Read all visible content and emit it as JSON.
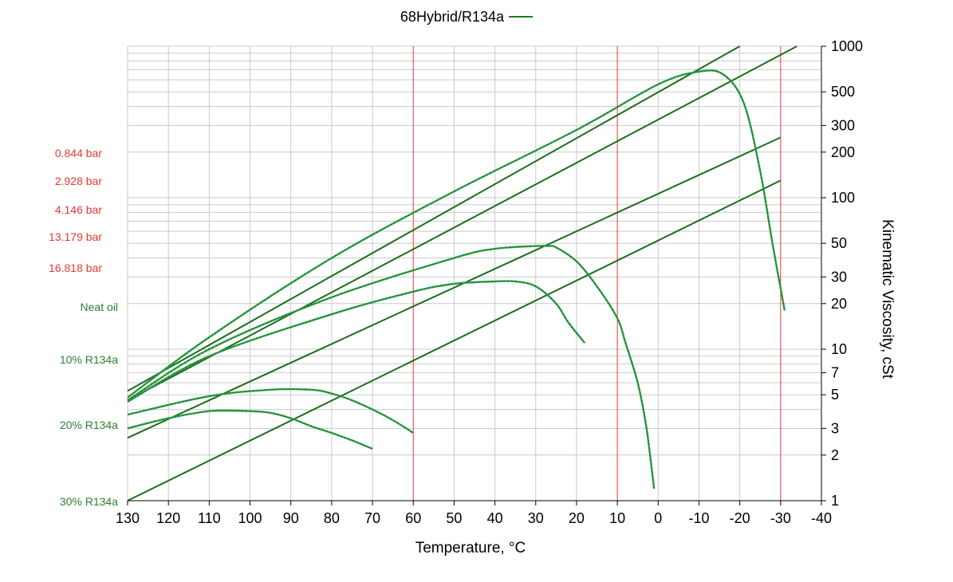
{
  "chart_data": {
    "type": "line",
    "legend": {
      "label": "68Hybrid/R134a",
      "color": "#1b7a1b",
      "placement": "top-center"
    },
    "xlabel": "Temperature, °C",
    "ylabel": "Kinematic Viscosity, cSt",
    "x_axis": {
      "reversed": true,
      "xlim": [
        -40,
        130
      ],
      "ticks": [
        130,
        120,
        110,
        100,
        90,
        80,
        70,
        60,
        50,
        40,
        30,
        20,
        10,
        0,
        -10,
        -20,
        -30,
        -40
      ],
      "tick_labels": [
        "130",
        "120",
        "110",
        "100",
        "90",
        "80",
        "70",
        "60",
        "50",
        "40",
        "30",
        "20",
        "10",
        "0",
        "-10",
        "-20",
        "-30",
        "-40"
      ]
    },
    "y_axis": {
      "scale": "log",
      "side": "right",
      "ylim": [
        1,
        1000
      ],
      "ticks": [
        1,
        2,
        3,
        5,
        7,
        10,
        20,
        30,
        50,
        100,
        200,
        300,
        500,
        1000
      ],
      "tick_labels": [
        "1",
        "2",
        "3",
        "5",
        "7",
        "10",
        "20",
        "30",
        "50",
        "100",
        "200",
        "300",
        "500",
        "1000"
      ]
    },
    "red_gridlines_x": [
      60,
      10,
      -30
    ],
    "grid": true,
    "pressure_labels": [
      "0.844 bar",
      "2.928 bar",
      "4.146 bar",
      "13.179 bar",
      "16.818 bar"
    ],
    "concentration_labels": [
      "Neat oil",
      "10% R134a",
      "20% R134a",
      "30% R134a"
    ],
    "series": [
      {
        "kind": "straight",
        "x": [
          130,
          -20
        ],
        "y": [
          5.3,
          1000
        ]
      },
      {
        "kind": "straight",
        "x": [
          130,
          -34
        ],
        "y": [
          4.6,
          1000
        ]
      },
      {
        "kind": "straight",
        "x": [
          130,
          -30
        ],
        "y": [
          2.6,
          250
        ]
      },
      {
        "kind": "straight",
        "x": [
          130,
          -30
        ],
        "y": [
          1.0,
          130
        ]
      },
      {
        "kind": "curve",
        "x": [
          130,
          110,
          80,
          50,
          20,
          0,
          -10,
          -16,
          -21,
          -25,
          -28,
          -31
        ],
        "y": [
          4.8,
          12,
          40,
          110,
          280,
          560,
          680,
          650,
          420,
          150,
          50,
          18
        ]
      },
      {
        "kind": "curve",
        "x": [
          130,
          110,
          80,
          50,
          40,
          30,
          27,
          25,
          20,
          15,
          10,
          8,
          5,
          3,
          2,
          1
        ],
        "y": [
          4.6,
          10,
          22,
          40,
          46,
          48,
          48,
          47,
          38,
          26,
          16,
          11,
          6,
          3.2,
          2,
          1.2
        ]
      },
      {
        "kind": "curve",
        "x": [
          130,
          110,
          80,
          60,
          50,
          40,
          35,
          30,
          25,
          22,
          18
        ],
        "y": [
          4.5,
          9,
          17,
          24,
          27,
          28,
          28,
          26,
          20,
          15,
          11
        ]
      },
      {
        "kind": "curve",
        "x": [
          130,
          110,
          95,
          85,
          80,
          75,
          70,
          65,
          60
        ],
        "y": [
          3.7,
          4.9,
          5.4,
          5.4,
          5.1,
          4.6,
          4.0,
          3.4,
          2.8
        ]
      },
      {
        "kind": "curve",
        "x": [
          130,
          120,
          110,
          100,
          95,
          90,
          85,
          80,
          75,
          70
        ],
        "y": [
          3.0,
          3.5,
          3.9,
          3.9,
          3.8,
          3.5,
          3.1,
          2.8,
          2.5,
          2.2
        ]
      }
    ]
  }
}
